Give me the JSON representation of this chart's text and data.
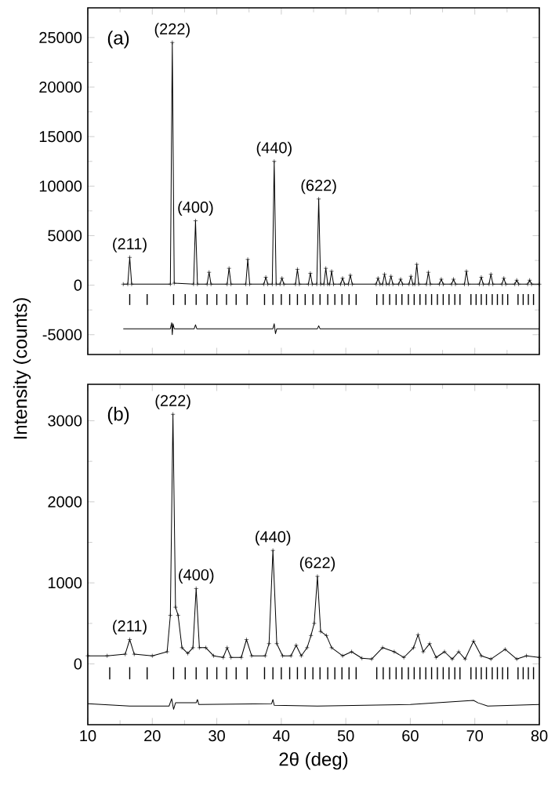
{
  "chart_data": [
    {
      "type": "line",
      "ylabel": "Intensity (counts)",
      "xlim": [
        10,
        80
      ],
      "ylim": [
        -7000,
        28000
      ],
      "xticks": [
        10,
        20,
        30,
        40,
        50,
        60,
        70,
        80
      ],
      "yticks": [
        -5000,
        0,
        5000,
        10000,
        15000,
        20000,
        25000
      ],
      "tick_labels": "y",
      "annotations": [
        "(a)",
        {
          "text": "(211)",
          "x": 16.5,
          "y": 2800
        },
        {
          "text": "(222)",
          "x": 23.1,
          "y": 24500
        },
        {
          "text": "(400)",
          "x": 26.7,
          "y": 6500
        },
        {
          "text": "(440)",
          "x": 38.9,
          "y": 12500
        },
        {
          "text": "(622)",
          "x": 45.8,
          "y": 8700
        }
      ],
      "series": [
        {
          "marker": "cross",
          "color": "#000000",
          "x": [
            15.5,
            16.2,
            16.5,
            16.8,
            22.8,
            23.1,
            23.4,
            26.4,
            26.7,
            27.0,
            28.5,
            28.8,
            29.1,
            31.6,
            31.9,
            32.2,
            34.5,
            34.8,
            35.1,
            37.3,
            37.6,
            37.9,
            38.6,
            38.9,
            39.2,
            39.8,
            40.1,
            40.4,
            42.2,
            42.5,
            42.8,
            44.2,
            44.5,
            44.8,
            45.5,
            45.8,
            46.1,
            46.6,
            46.9,
            47.2,
            47.5,
            47.8,
            48.1,
            49.2,
            49.5,
            49.8,
            50.4,
            50.7,
            51.0,
            54.7,
            55.0,
            55.3,
            55.7,
            56.0,
            56.3,
            56.7,
            57.0,
            57.3,
            58.2,
            58.5,
            58.8,
            59.8,
            60.1,
            60.4,
            60.7,
            61.0,
            61.3,
            62.5,
            62.8,
            63.1,
            64.5,
            64.8,
            65.1,
            66.4,
            66.7,
            67.0,
            68.4,
            68.7,
            69.0,
            70.7,
            71.0,
            71.3,
            72.2,
            72.5,
            72.8,
            74.2,
            74.5,
            74.8,
            76.2,
            76.5,
            76.8,
            78.2,
            78.5,
            78.8,
            80.0
          ],
          "values": [
            100,
            100,
            2800,
            100,
            100,
            24500,
            200,
            100,
            6500,
            100,
            100,
            1300,
            100,
            100,
            1700,
            100,
            100,
            2600,
            100,
            100,
            800,
            100,
            100,
            12500,
            100,
            100,
            700,
            100,
            100,
            1600,
            100,
            100,
            1200,
            100,
            100,
            8700,
            100,
            100,
            1700,
            100,
            100,
            1400,
            100,
            100,
            700,
            100,
            100,
            1000,
            100,
            100,
            700,
            100,
            100,
            1100,
            100,
            100,
            900,
            100,
            100,
            600,
            100,
            100,
            900,
            100,
            100,
            2100,
            100,
            100,
            1300,
            100,
            100,
            600,
            100,
            100,
            600,
            100,
            100,
            1400,
            100,
            100,
            800,
            100,
            100,
            1100,
            100,
            100,
            700,
            100,
            100,
            500,
            100,
            100,
            500,
            100,
            100
          ]
        },
        {
          "type": "bar",
          "color": "#000000",
          "base": [
            -2000,
            -2000,
            -2000,
            -2000,
            -2000,
            -2000,
            -2000,
            -2000,
            -2000,
            -2000,
            -2000,
            -2000,
            -2000,
            -2000,
            -2000,
            -2000,
            -2000,
            -2000,
            -2000,
            -2000,
            -2000,
            -2000,
            -2000,
            -2000,
            -2000,
            -2000,
            -2000,
            -2000,
            -2000,
            -2000,
            -2000,
            -2000,
            -2000,
            -2000,
            -2000,
            -2000,
            -2000,
            -2000,
            -2000,
            -2000,
            -2000,
            -2000,
            -2000,
            -2000,
            -2000,
            -2000,
            -2000,
            -2000,
            -2000,
            -2000
          ],
          "x": [
            16.5,
            19.2,
            23.3,
            25.1,
            26.8,
            28.5,
            30.0,
            31.5,
            33.0,
            34.7,
            37.4,
            38.7,
            40.0,
            41.3,
            42.5,
            43.7,
            44.9,
            46.0,
            47.2,
            48.3,
            49.4,
            50.5,
            51.6,
            54.8,
            55.8,
            56.8,
            57.8,
            58.7,
            59.7,
            60.6,
            61.5,
            62.4,
            63.3,
            64.2,
            65.1,
            66.0,
            66.9,
            67.7,
            69.4,
            70.2,
            71.0,
            71.8,
            72.7,
            73.5,
            74.3,
            75.1,
            76.7,
            77.5,
            78.3,
            79.1
          ],
          "values": [
            1100,
            1100,
            1100,
            1100,
            1100,
            1100,
            1100,
            1100,
            1100,
            1100,
            1100,
            1100,
            1100,
            1100,
            1100,
            1100,
            1100,
            1100,
            1100,
            1100,
            1100,
            1100,
            1100,
            1100,
            1100,
            1100,
            1100,
            1100,
            1100,
            1100,
            1100,
            1100,
            1100,
            1100,
            1100,
            1100,
            1100,
            1100,
            1100,
            1100,
            1100,
            1100,
            1100,
            1100,
            1100,
            1100,
            1100,
            1100,
            1100,
            1100
          ]
        },
        {
          "marker": "none",
          "color": "#000000",
          "x": [
            15.5,
            22.8,
            23.0,
            23.1,
            23.2,
            23.4,
            26.5,
            26.7,
            26.9,
            38.7,
            38.9,
            39.1,
            39.3,
            45.6,
            45.8,
            46.0,
            80.0
          ],
          "values": [
            -4400,
            -4400,
            -3800,
            -5000,
            -3900,
            -4400,
            -4400,
            -4000,
            -4400,
            -4400,
            -3900,
            -4900,
            -4400,
            -4400,
            -4100,
            -4400,
            -4400
          ]
        }
      ]
    },
    {
      "type": "line",
      "xlabel": "2θ (deg)",
      "xlim": [
        10,
        80
      ],
      "ylim": [
        -750,
        3450
      ],
      "xticks": [
        10,
        20,
        30,
        40,
        50,
        60,
        70,
        80
      ],
      "yticks": [
        0,
        1000,
        2000,
        3000
      ],
      "annotations": [
        "(b)",
        {
          "text": "(211)",
          "x": 16.5,
          "y": 300
        },
        {
          "text": "(222)",
          "x": 23.2,
          "y": 3080
        },
        {
          "text": "(400)",
          "x": 26.8,
          "y": 930
        },
        {
          "text": "(440)",
          "x": 38.7,
          "y": 1400
        },
        {
          "text": "(622)",
          "x": 45.6,
          "y": 1080
        }
      ],
      "series": [
        {
          "marker": "cross",
          "color": "#000000",
          "x": [
            10.0,
            13.0,
            15.8,
            16.5,
            17.2,
            20.0,
            22.3,
            22.8,
            23.2,
            23.6,
            24.0,
            24.6,
            25.5,
            26.3,
            26.8,
            27.3,
            28.3,
            29.5,
            31.0,
            31.6,
            32.2,
            33.8,
            34.6,
            35.4,
            37.5,
            38.1,
            38.7,
            39.3,
            40.2,
            41.5,
            42.3,
            43.1,
            44.0,
            44.6,
            45.1,
            45.6,
            46.1,
            47.0,
            47.8,
            49.5,
            50.9,
            52.5,
            54.0,
            55.7,
            57.5,
            59.0,
            60.5,
            61.2,
            62.0,
            63.0,
            64.0,
            65.3,
            66.5,
            67.5,
            68.5,
            69.8,
            71.0,
            72.5,
            74.7,
            76.5,
            78.0,
            80.0
          ],
          "values": [
            100,
            100,
            120,
            300,
            120,
            100,
            150,
            600,
            3080,
            700,
            600,
            200,
            130,
            200,
            930,
            200,
            200,
            100,
            80,
            200,
            80,
            80,
            300,
            100,
            100,
            250,
            1400,
            250,
            100,
            100,
            230,
            100,
            200,
            350,
            500,
            1080,
            400,
            350,
            200,
            100,
            150,
            70,
            60,
            200,
            150,
            80,
            200,
            360,
            150,
            250,
            80,
            150,
            60,
            150,
            60,
            280,
            100,
            60,
            180,
            60,
            100,
            80
          ]
        },
        {
          "type": "bar",
          "color": "#000000",
          "base": [
            -190,
            -190,
            -190,
            -190,
            -190,
            -190,
            -190,
            -190,
            -190,
            -190,
            -190,
            -190,
            -190,
            -190,
            -190,
            -190,
            -190,
            -190,
            -190,
            -190,
            -190,
            -190,
            -190,
            -190,
            -190,
            -190,
            -190,
            -190,
            -190,
            -190,
            -190,
            -190,
            -190,
            -190,
            -190,
            -190,
            -190,
            -190,
            -190,
            -190,
            -190,
            -190,
            -190,
            -190,
            -190,
            -190,
            -190,
            -190,
            -190,
            -190,
            -190
          ],
          "x": [
            13.4,
            16.5,
            19.2,
            23.3,
            25.1,
            26.8,
            28.5,
            30.0,
            31.5,
            33.0,
            34.7,
            37.4,
            38.7,
            40.0,
            41.3,
            42.5,
            43.7,
            44.9,
            46.0,
            47.2,
            48.3,
            49.4,
            50.5,
            51.6,
            54.8,
            55.8,
            56.8,
            57.8,
            58.7,
            59.7,
            60.6,
            61.5,
            62.4,
            63.3,
            64.2,
            65.1,
            66.0,
            66.9,
            67.7,
            69.4,
            70.2,
            71.0,
            71.8,
            72.7,
            73.5,
            74.3,
            75.1,
            76.7,
            77.5,
            78.3,
            79.1
          ],
          "values": [
            150,
            150,
            150,
            150,
            150,
            150,
            150,
            150,
            150,
            150,
            150,
            150,
            150,
            150,
            150,
            150,
            150,
            150,
            150,
            150,
            150,
            150,
            150,
            150,
            150,
            150,
            150,
            150,
            150,
            150,
            150,
            150,
            150,
            150,
            150,
            150,
            150,
            150,
            150,
            150,
            150,
            150,
            150,
            150,
            150,
            150,
            150,
            150,
            150,
            150,
            150
          ]
        },
        {
          "marker": "none",
          "color": "#000000",
          "x": [
            10.0,
            16.5,
            22.6,
            23.0,
            23.3,
            23.6,
            26.8,
            27.0,
            27.2,
            38.5,
            38.7,
            38.9,
            45.6,
            60.0,
            69.8,
            70.5,
            72.0,
            80.0
          ],
          "values": [
            -490,
            -520,
            -520,
            -430,
            -560,
            -480,
            -480,
            -440,
            -500,
            -490,
            -440,
            -510,
            -520,
            -500,
            -450,
            -480,
            -520,
            -500
          ]
        }
      ]
    }
  ]
}
